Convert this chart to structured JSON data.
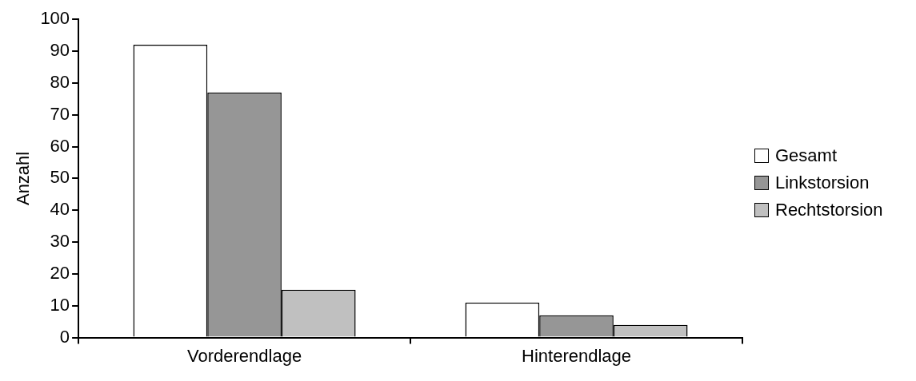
{
  "chart_data": {
    "type": "bar",
    "ylabel": "Anzahl",
    "categories": [
      "Vorderendlage",
      "Hinterendlage"
    ],
    "series": [
      {
        "name": "Gesamt",
        "color": "#ffffff",
        "values": [
          92,
          11
        ]
      },
      {
        "name": "Linkstorsion",
        "color": "#969696",
        "values": [
          77,
          7
        ]
      },
      {
        "name": "Rechtstorsion",
        "color": "#c0c0c0",
        "values": [
          15,
          4
        ]
      }
    ],
    "ylim": [
      0,
      100
    ],
    "yticks": [
      0,
      10,
      20,
      30,
      40,
      50,
      60,
      70,
      80,
      90,
      100
    ],
    "grid": false,
    "legend": "right"
  }
}
